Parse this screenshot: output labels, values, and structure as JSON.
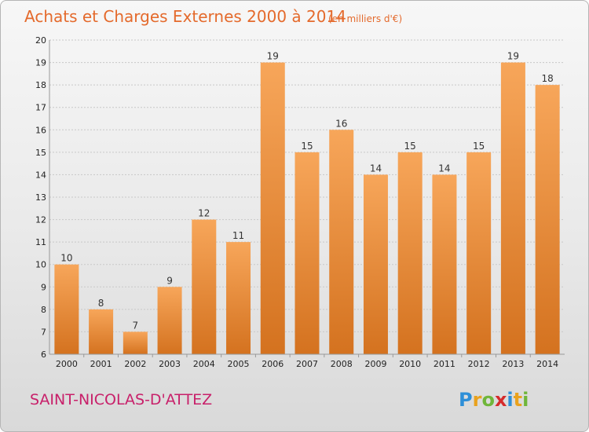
{
  "title": "Achats et Charges Externes 2000 à 2014",
  "subtitle": "(en milliers d'€)",
  "commune": "SAINT-NICOLAS-D'ATTEZ",
  "brand": {
    "letters": [
      "P",
      "r",
      "o",
      "x",
      "i",
      "t",
      "i"
    ],
    "colors": [
      "#2e8fd8",
      "#e9a21e",
      "#6fb63a",
      "#d52b2b",
      "#2e8fd8",
      "#e9a21e",
      "#6fb63a"
    ]
  },
  "colors": {
    "accent": "#e46a2c",
    "bar_light": "#f7a65a",
    "bar_dark": "#d4721f",
    "commune": "#c8206a"
  },
  "chart_data": {
    "type": "bar",
    "title": "Achats et Charges Externes 2000 à 2014",
    "subtitle": "(en milliers d'€)",
    "categories": [
      "2000",
      "2001",
      "2002",
      "2003",
      "2004",
      "2005",
      "2006",
      "2007",
      "2008",
      "2009",
      "2010",
      "2011",
      "2012",
      "2013",
      "2014"
    ],
    "values": [
      10,
      8,
      7,
      9,
      12,
      11,
      19,
      15,
      16,
      14,
      15,
      14,
      15,
      19,
      18
    ],
    "ylim": [
      6,
      20
    ],
    "yticks": [
      6,
      7,
      8,
      9,
      10,
      11,
      12,
      13,
      14,
      15,
      16,
      17,
      18,
      19,
      20
    ],
    "grid": true,
    "legend": "none"
  }
}
